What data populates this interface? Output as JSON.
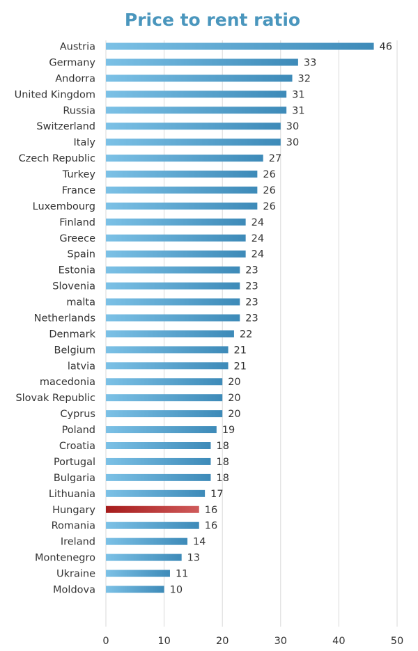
{
  "chart_data": {
    "type": "bar",
    "orientation": "horizontal",
    "title": "Price to rent ratio",
    "xlabel": "",
    "ylabel": "",
    "xlim": [
      0,
      50
    ],
    "x_ticks": [
      0,
      10,
      20,
      30,
      40,
      50
    ],
    "grid": "vertical",
    "categories": [
      "Austria",
      "Germany",
      "Andorra",
      "United Kingdom",
      "Russia",
      "Switzerland",
      "Italy",
      "Czech Republic",
      "Turkey",
      "France",
      "Luxembourg",
      "Finland",
      "Greece",
      "Spain",
      "Estonia",
      "Slovenia",
      "malta",
      "Netherlands",
      "Denmark",
      "Belgium",
      "latvia",
      "macedonia",
      "Slovak Republic",
      "Cyprus",
      "Poland",
      "Croatia",
      "Portugal",
      "Bulgaria",
      "Lithuania",
      "Hungary",
      "Romania",
      "Ireland",
      "Montenegro",
      "Ukraine",
      "Moldova"
    ],
    "values": [
      46,
      33,
      32,
      31,
      31,
      30,
      30,
      27,
      26,
      26,
      26,
      24,
      24,
      24,
      23,
      23,
      23,
      23,
      22,
      21,
      21,
      20,
      20,
      20,
      19,
      18,
      18,
      18,
      17,
      16,
      16,
      14,
      13,
      11,
      10
    ],
    "highlight": "Hungary",
    "colors": {
      "bar_light": "#7cc1e6",
      "bar_dark": "#3d8ab8",
      "highlight_dark": "#a61c1c",
      "highlight_light": "#cf5a5a",
      "title": "#4a96bd"
    }
  }
}
